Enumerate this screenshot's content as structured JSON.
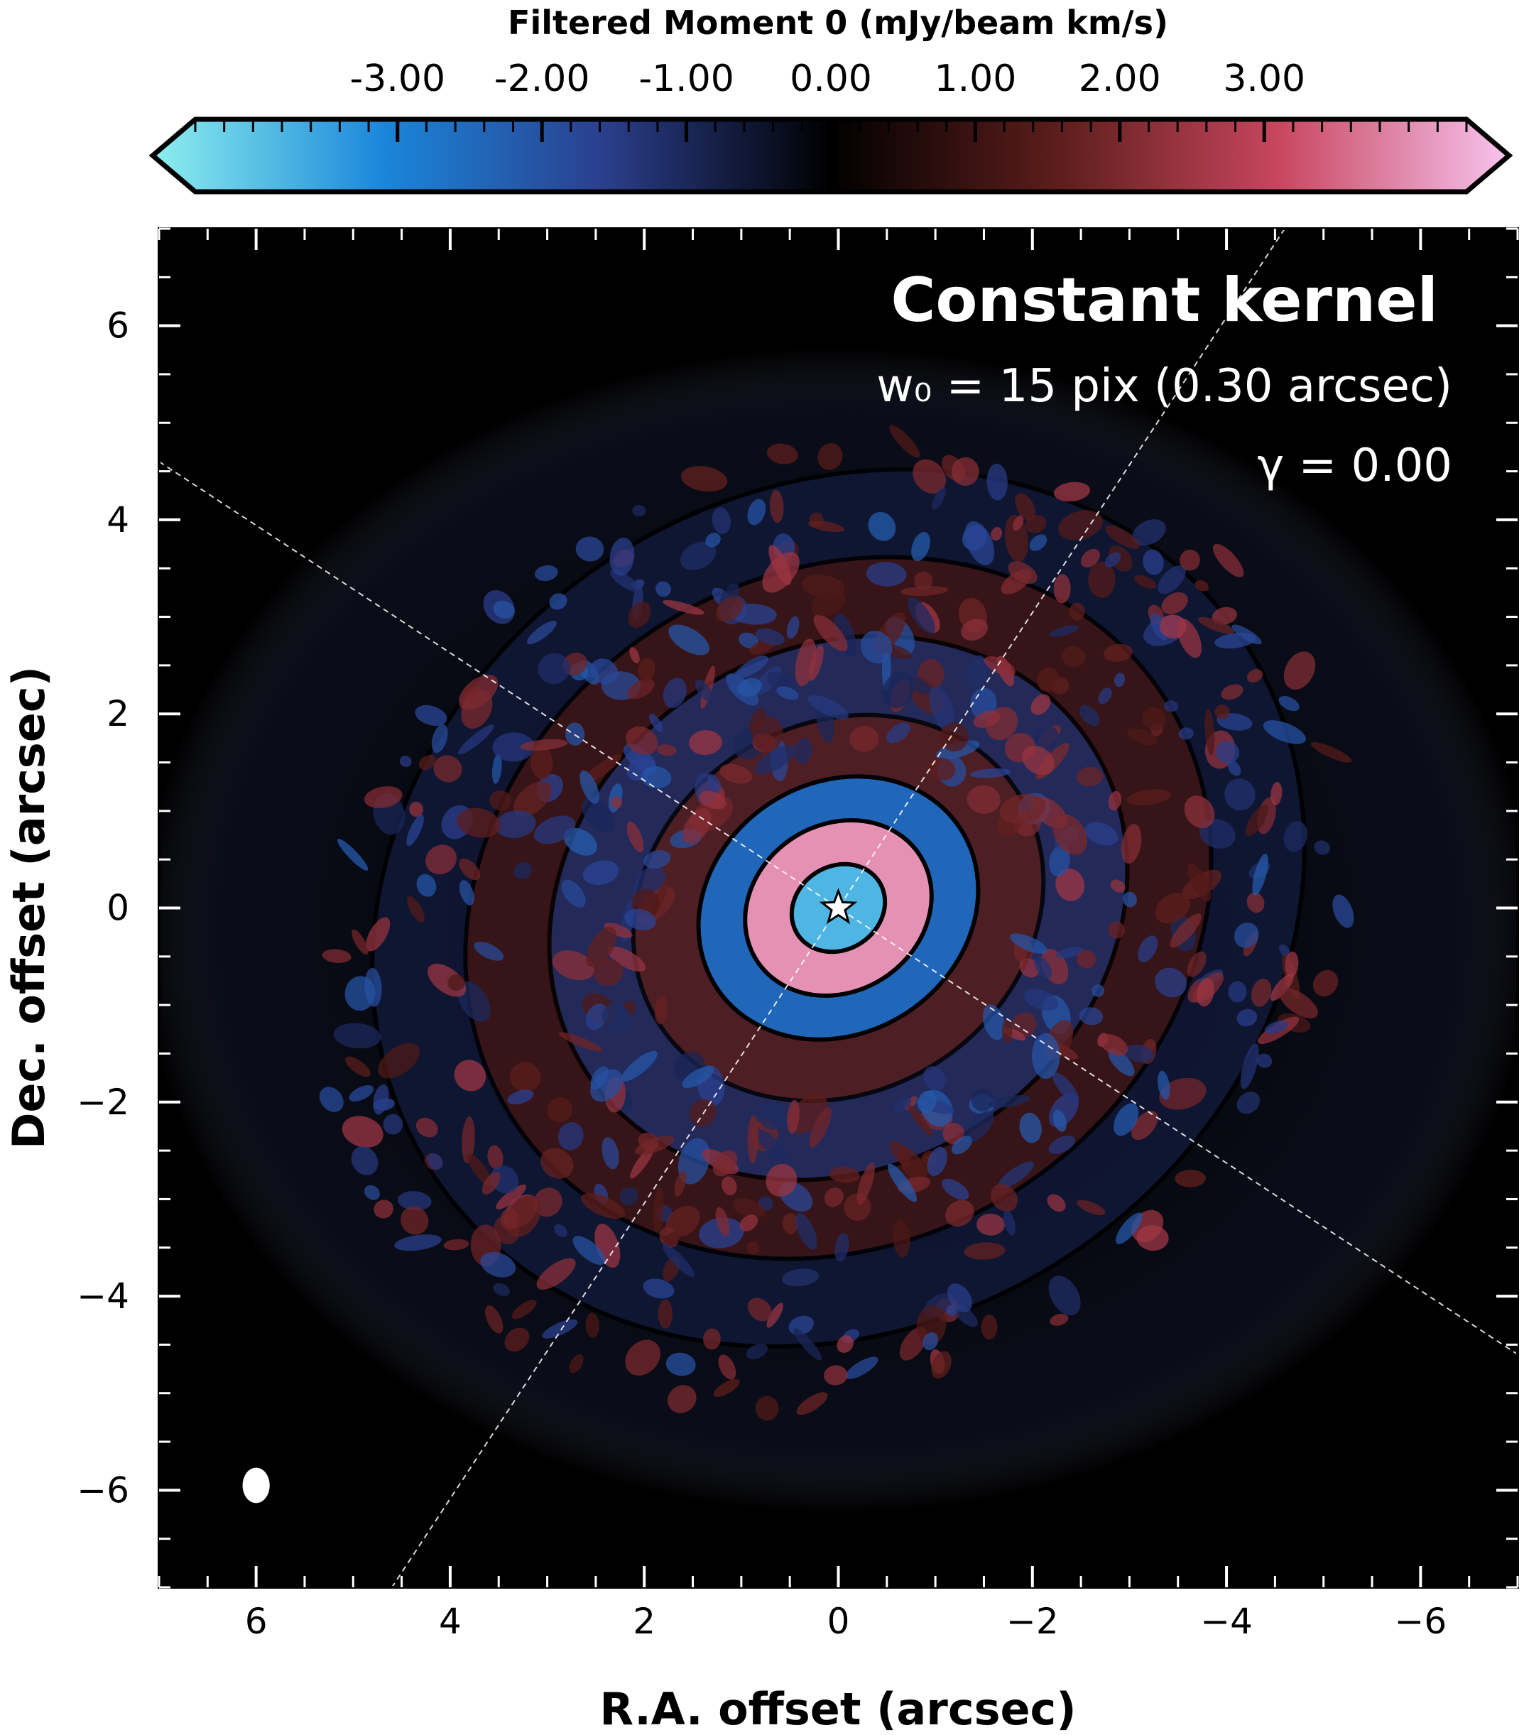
{
  "chart_data": {
    "type": "heatmap",
    "colorbar": {
      "label": "Filtered Moment 0 (mJy/beam km/s)",
      "ticks": [
        "-3.00",
        "-2.00",
        "-1.00",
        "0.00",
        "1.00",
        "2.00",
        "3.00"
      ],
      "tick_values": [
        -3,
        -2,
        -1,
        0,
        1,
        2,
        3
      ],
      "range": [
        -4.4,
        4.4
      ],
      "extend": "both",
      "colors": {
        "min": "#8ef0ee",
        "neg_mid": "#1a86da",
        "neg_low": "#2b3f8e",
        "zero": "#000000",
        "pos_low": "#5e1e1c",
        "pos_mid": "#c8465e",
        "max": "#f7c4ef"
      }
    },
    "xlabel": "R.A. offset (arcsec)",
    "ylabel": "Dec. offset (arcsec)",
    "xlim": [
      7,
      -7
    ],
    "ylim": [
      -7,
      7
    ],
    "x_ticks": [
      6,
      4,
      2,
      0,
      -2,
      -4,
      -6
    ],
    "x_tick_labels": [
      "6",
      "4",
      "2",
      "0",
      "−2",
      "−4",
      "−6"
    ],
    "y_ticks": [
      6,
      4,
      2,
      0,
      -2,
      -4,
      -6
    ],
    "y_tick_labels": [
      "6",
      "4",
      "2",
      "0",
      "−2",
      "−4",
      "−6"
    ],
    "panel": {
      "title": "Constant kernel",
      "annotation_1": "w₀ = 15 pix (0.30 arcsec)",
      "annotation_2": "γ = 0.00"
    },
    "star": {
      "x": 0,
      "y": 0
    },
    "beam": {
      "x": 6.0,
      "y": -5.95,
      "major_arcsec": 0.27,
      "minor_arcsec": 0.2
    },
    "axes_lines": [
      {
        "name": "major-axis",
        "from": [
          7.0,
          4.6
        ],
        "to": [
          -7.0,
          -4.6
        ]
      },
      {
        "name": "minor-axis",
        "from": [
          -4.6,
          7.0
        ],
        "to": [
          4.6,
          -7.0
        ]
      }
    ],
    "rings": [
      {
        "r_arcsec": 0.5,
        "value": -3.6
      },
      {
        "r_arcsec": 1.0,
        "value": 3.8
      },
      {
        "r_arcsec": 1.5,
        "value": -2.3
      },
      {
        "r_arcsec": 2.2,
        "value": 1.4
      },
      {
        "r_arcsec": 3.1,
        "value": -1.1
      },
      {
        "r_arcsec": 4.0,
        "value": 1.0
      },
      {
        "r_arcsec": 5.0,
        "value": -0.6
      }
    ]
  }
}
